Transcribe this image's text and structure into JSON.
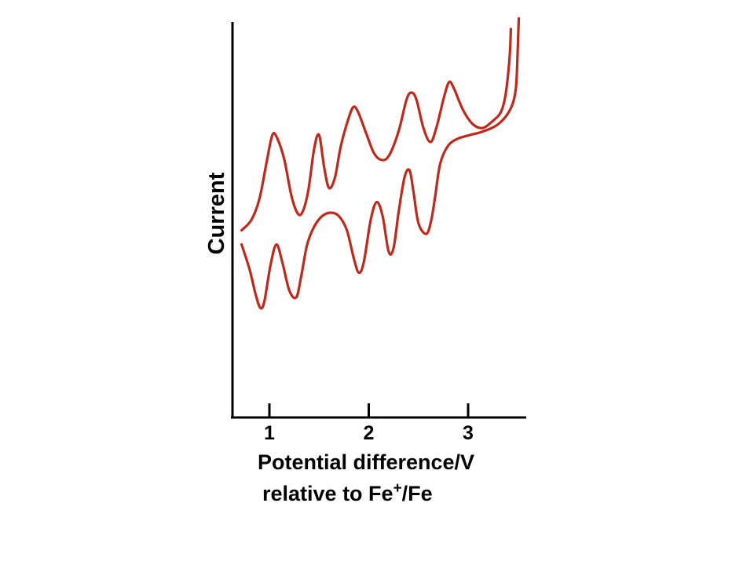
{
  "chart_data": {
    "type": "line",
    "title": "",
    "ylabel": "Current",
    "xlabel_line1": "Potential difference/V",
    "xlabel_line2_prefix": "relative to Fe",
    "xlabel_line2_sup": "+",
    "xlabel_line2_suffix": "/Fe",
    "xticks": [
      "1",
      "2",
      "3"
    ],
    "xlim": [
      0.6,
      3.6
    ],
    "grid": false,
    "line_color": "#c0281c",
    "series": [
      {
        "description_free": true,
        "x": [
          0.72,
          0.82,
          0.9,
          0.97,
          1.03,
          1.08,
          1.15,
          1.22,
          1.28,
          1.33,
          1.39,
          1.45,
          1.5,
          1.55,
          1.6,
          1.66,
          1.72,
          1.8,
          1.85,
          1.9,
          1.98,
          2.05,
          2.12,
          2.2,
          2.3,
          2.38,
          2.43,
          2.48,
          2.55,
          2.62,
          2.68,
          2.76,
          2.81,
          2.86,
          2.95,
          3.05,
          3.15,
          3.25,
          3.32,
          3.36,
          3.39,
          3.42,
          3.43
        ],
        "y": [
          0.53,
          0.56,
          0.62,
          0.72,
          0.8,
          0.79,
          0.73,
          0.63,
          0.58,
          0.58,
          0.64,
          0.76,
          0.8,
          0.71,
          0.65,
          0.68,
          0.77,
          0.85,
          0.88,
          0.86,
          0.8,
          0.75,
          0.73,
          0.74,
          0.81,
          0.9,
          0.92,
          0.9,
          0.82,
          0.78,
          0.82,
          0.91,
          0.95,
          0.93,
          0.87,
          0.83,
          0.82,
          0.84,
          0.86,
          0.89,
          0.94,
          1.03,
          1.1
        ]
      },
      {
        "x": [
          0.72,
          0.8,
          0.86,
          0.91,
          0.95,
          1.01,
          1.07,
          1.13,
          1.2,
          1.27,
          1.32,
          1.38,
          1.45,
          1.53,
          1.62,
          1.7,
          1.78,
          1.85,
          1.9,
          1.95,
          2.02,
          2.08,
          2.14,
          2.2,
          2.25,
          2.3,
          2.36,
          2.41,
          2.45,
          2.5,
          2.58,
          2.63,
          2.67,
          2.72,
          2.8,
          2.9,
          3.02,
          3.15,
          3.3,
          3.42,
          3.48,
          3.5,
          3.51
        ],
        "y": [
          0.49,
          0.42,
          0.35,
          0.31,
          0.33,
          0.43,
          0.49,
          0.44,
          0.36,
          0.34,
          0.4,
          0.49,
          0.54,
          0.57,
          0.58,
          0.57,
          0.53,
          0.45,
          0.41,
          0.44,
          0.56,
          0.61,
          0.57,
          0.47,
          0.48,
          0.58,
          0.68,
          0.7,
          0.64,
          0.55,
          0.52,
          0.56,
          0.63,
          0.72,
          0.77,
          0.79,
          0.8,
          0.81,
          0.83,
          0.87,
          0.93,
          1.05,
          1.13
        ]
      }
    ]
  }
}
